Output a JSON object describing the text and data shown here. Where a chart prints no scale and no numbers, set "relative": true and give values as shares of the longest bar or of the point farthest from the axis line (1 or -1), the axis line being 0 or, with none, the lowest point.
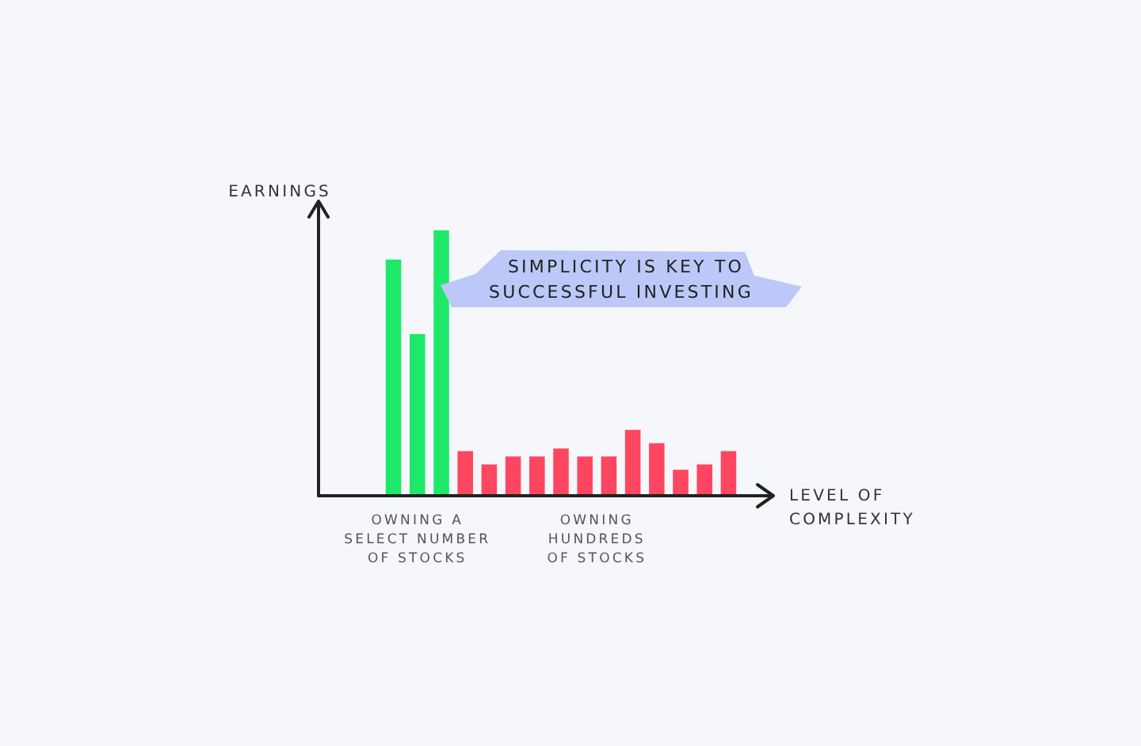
{
  "chart_data": {
    "type": "bar",
    "relative": true,
    "ylabel": "EARNINGS",
    "xlabel": "LEVEL OF COMPLEXITY",
    "categories": [
      null,
      null,
      null,
      null,
      null,
      null,
      null,
      null,
      null,
      null,
      null,
      null,
      null,
      null,
      null
    ],
    "values": [
      0.89,
      0.61,
      1,
      0.17,
      0.12,
      0.15,
      0.15,
      0.18,
      0.15,
      0.15,
      0.25,
      0.2,
      0.1,
      0.12,
      0.17
    ],
    "colors": [
      "#1ee86a",
      "#1ee86a",
      "#1ee86a",
      "#ff4660",
      "#ff4660",
      "#ff4660",
      "#ff4660",
      "#ff4660",
      "#ff4660",
      "#ff4660",
      "#ff4660",
      "#ff4660",
      "#ff4660",
      "#ff4660",
      "#ff4660"
    ],
    "annotations": [
      "OWNING A SELECT NUMBER OF STOCKS",
      "OWNING HUNDREDS OF STOCKS",
      "SIMPLICITY IS KEY TO SUCCESSFUL INVESTING"
    ]
  }
}
